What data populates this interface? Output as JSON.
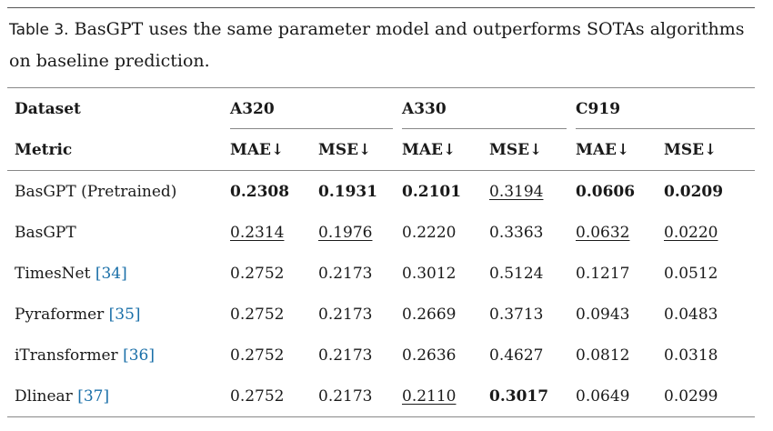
{
  "caption": {
    "label": "Table 3.",
    "text": " BasGPT uses the same parameter model and outperforms SOTAs algorithms on baseline prediction."
  },
  "table": {
    "dataset_header": "Dataset",
    "metric_header": "Metric",
    "groups": [
      "A320",
      "A330",
      "C919"
    ],
    "metrics": [
      "MAE↓",
      "MSE↓",
      "MAE↓",
      "MSE↓",
      "MAE↓",
      "MSE↓"
    ],
    "rows": [
      {
        "name": "BasGPT (Pretrained)",
        "ref": "",
        "values": [
          "0.2308",
          "0.1931",
          "0.2101",
          "0.3194",
          "0.0606",
          "0.0209"
        ]
      },
      {
        "name": "BasGPT",
        "ref": "",
        "values": [
          "0.2314",
          "0.1976",
          "0.2220",
          "0.3363",
          "0.0632",
          "0.0220"
        ]
      },
      {
        "name": "TimesNet ",
        "ref": "[34]",
        "values": [
          "0.2752",
          "0.2173",
          "0.3012",
          "0.5124",
          "0.1217",
          "0.0512"
        ]
      },
      {
        "name": "Pyraformer ",
        "ref": "[35]",
        "values": [
          "0.2752",
          "0.2173",
          "0.2669",
          "0.3713",
          "0.0943",
          "0.0483"
        ]
      },
      {
        "name": "iTransformer ",
        "ref": "[36]",
        "values": [
          "0.2752",
          "0.2173",
          "0.2636",
          "0.4627",
          "0.0812",
          "0.0318"
        ]
      },
      {
        "name": "Dlinear ",
        "ref": "[37]",
        "values": [
          "0.2752",
          "0.2173",
          "0.2110",
          "0.3017",
          "0.0649",
          "0.0299"
        ]
      }
    ]
  }
}
